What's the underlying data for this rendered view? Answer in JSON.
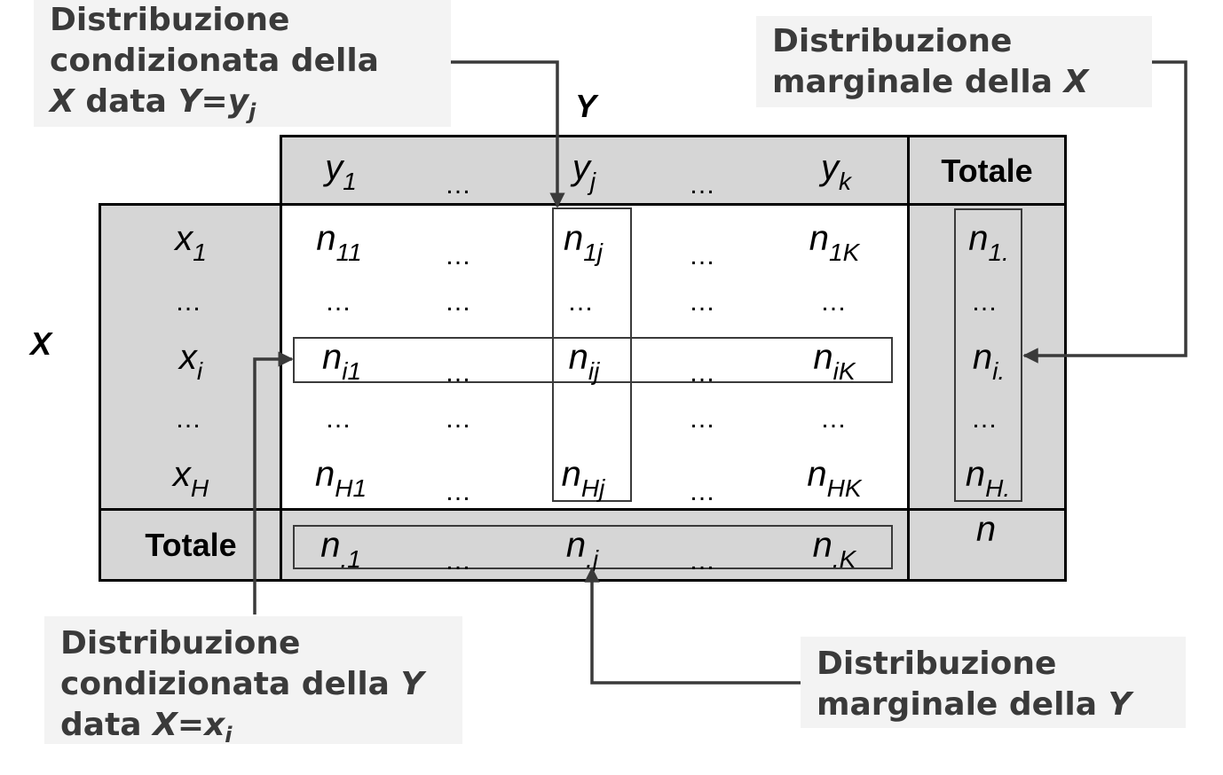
{
  "annotations": {
    "cond_x": [
      "Distribuzione",
      "condizionata della",
      "data"
    ],
    "marg_x": [
      "Distribuzione",
      "marginale della"
    ],
    "cond_y": [
      "Distribuzione",
      "condizionata della",
      "data"
    ],
    "marg_y": [
      "Distribuzione",
      "marginale della"
    ]
  },
  "symbols": {
    "X": "X",
    "Y": "Y",
    "eq": "=",
    "x": "x",
    "y": "y",
    "i": "i",
    "j": "j"
  },
  "axes": {
    "row_variable": "X",
    "col_variable": "Y"
  },
  "table": {
    "total_label": "Totale",
    "ellipsis": "…",
    "header": [
      {
        "base": "y",
        "sub": "1"
      },
      {
        "base": "y",
        "sub": "j"
      },
      {
        "base": "y",
        "sub": "k"
      }
    ],
    "row_labels": [
      {
        "base": "x",
        "sub": "1"
      },
      {
        "base": "x",
        "sub": "i"
      },
      {
        "base": "x",
        "sub": "H"
      }
    ],
    "cells": {
      "r1": [
        {
          "base": "n",
          "sub": "11"
        },
        {
          "base": "n",
          "sub": "1j"
        },
        {
          "base": "n",
          "sub": "1K"
        }
      ],
      "ri": [
        {
          "base": "n",
          "sub": "i1"
        },
        {
          "base": "n",
          "sub": "ij"
        },
        {
          "base": "n",
          "sub": "iK"
        }
      ],
      "rH": [
        {
          "base": "n",
          "sub": "H1"
        },
        {
          "base": "n",
          "sub": "Hj"
        },
        {
          "base": "n",
          "sub": "HK"
        }
      ]
    },
    "row_totals": [
      {
        "base": "n",
        "sub": "1."
      },
      {
        "base": "n",
        "sub": "i."
      },
      {
        "base": "n",
        "sub": "H."
      }
    ],
    "col_totals": [
      {
        "base": "n",
        "sub": ".1"
      },
      {
        "base": "n",
        "sub": ".j"
      },
      {
        "base": "n",
        "sub": ".K"
      }
    ],
    "grand_total": "n"
  }
}
